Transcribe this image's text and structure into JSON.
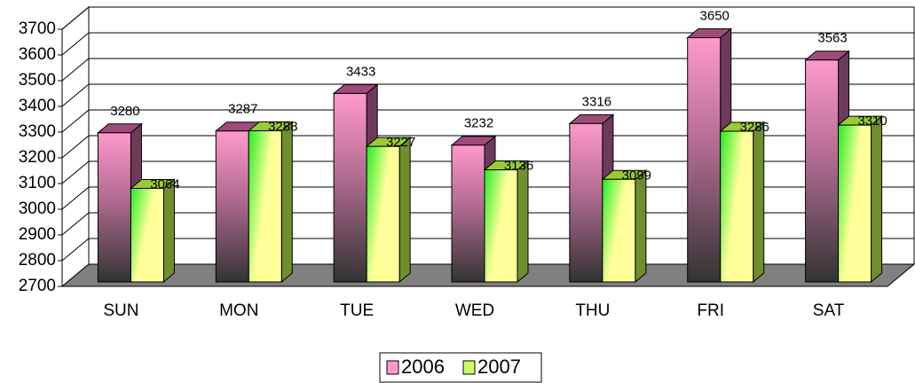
{
  "chart_data": {
    "type": "bar",
    "categories": [
      "SUN",
      "MON",
      "TUE",
      "WED",
      "THU",
      "FRI",
      "SAT"
    ],
    "series": [
      {
        "name": "2006",
        "color": "#ff99cc",
        "values": [
          3280,
          3287,
          3433,
          3232,
          3316,
          3650,
          3563
        ]
      },
      {
        "name": "2007",
        "color": "#ccff66",
        "values": [
          3064,
          3288,
          3227,
          3136,
          3099,
          3286,
          3310
        ]
      }
    ],
    "ylim": [
      2700,
      3700
    ],
    "yticks": [
      2700,
      2800,
      2900,
      3000,
      3100,
      3200,
      3300,
      3400,
      3500,
      3600,
      3700
    ],
    "grid": true,
    "legend": "bottom"
  }
}
